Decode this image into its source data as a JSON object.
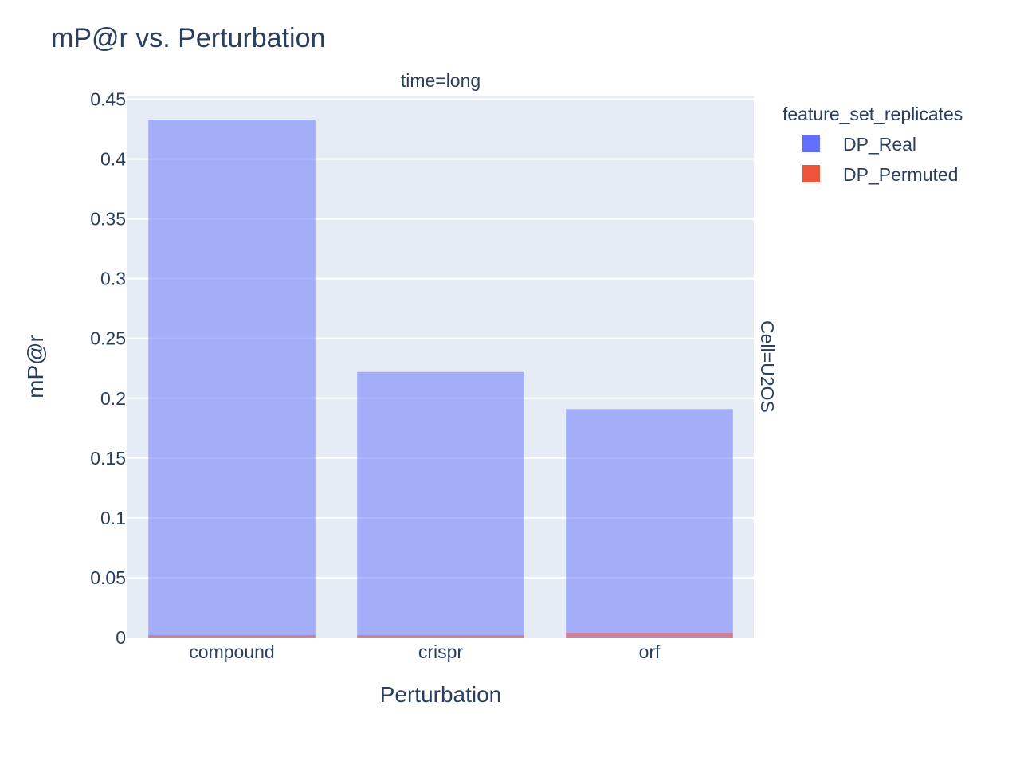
{
  "chart_data": {
    "type": "bar",
    "title": "mP@r vs. Perturbation",
    "xlabel": "Perturbation",
    "ylabel": "mP@r",
    "facet_col_label": "time=long",
    "facet_row_label": "Cell=U2OS",
    "categories": [
      "compound",
      "crispr",
      "orf"
    ],
    "series": [
      {
        "name": "DP_Real",
        "values": [
          0.433,
          0.222,
          0.191
        ],
        "color": "#636efa"
      },
      {
        "name": "DP_Permuted",
        "values": [
          0.002,
          0.002,
          0.004
        ],
        "color": "#ef553b"
      }
    ],
    "barmode": "overlay",
    "bar_opacity": 0.5,
    "ylim": [
      0,
      0.453
    ],
    "yticks": [
      0,
      0.05,
      0.1,
      0.15,
      0.2,
      0.25,
      0.3,
      0.35,
      0.4,
      0.45
    ],
    "ytick_labels": [
      "0",
      "0.05",
      "0.1",
      "0.15",
      "0.2",
      "0.25",
      "0.3",
      "0.35",
      "0.4",
      "0.45"
    ],
    "grid": true,
    "legend": {
      "title": "feature_set_replicates",
      "placement": "top-right"
    },
    "colors": {
      "plot_background": "#e5ecf6",
      "grid": "#ffffff",
      "text": "#2a3f5f"
    }
  }
}
